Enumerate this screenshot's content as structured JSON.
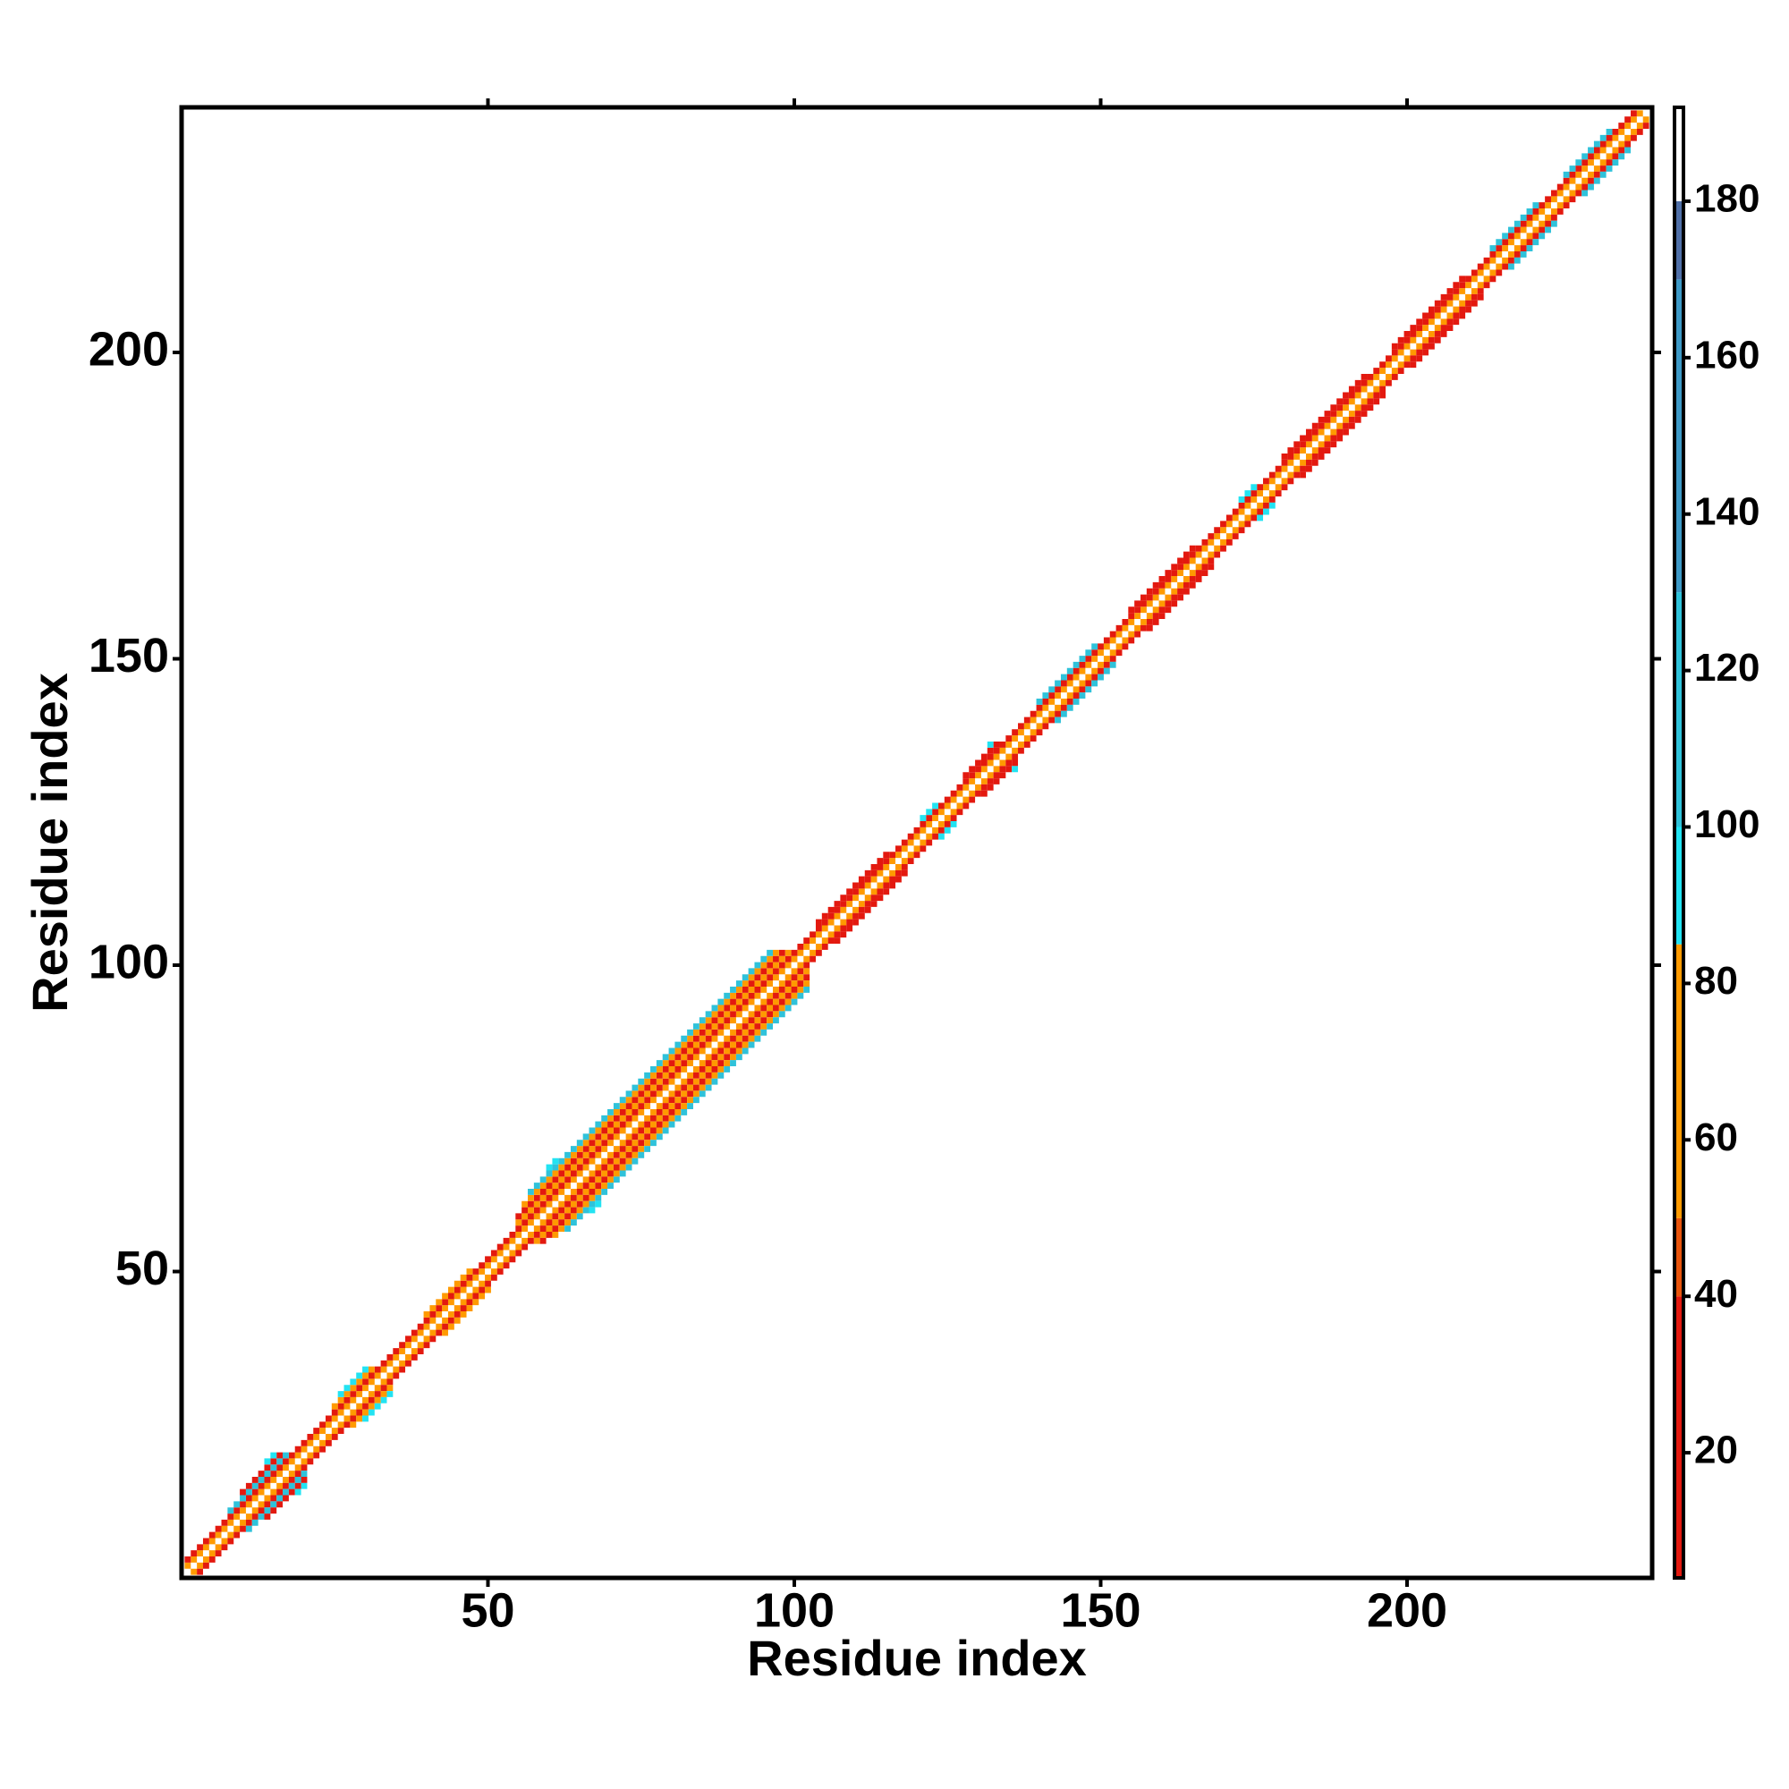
{
  "chart_data": {
    "type": "heatmap",
    "x_label": "Residue index",
    "y_label": "Residue index",
    "xlim": [
      0,
      240
    ],
    "ylim": [
      0,
      240
    ],
    "xticks": [
      50,
      100,
      150,
      200
    ],
    "yticks": [
      50,
      100,
      150,
      200
    ],
    "bands": [
      {
        "start": 1,
        "end": 239,
        "offset": 0,
        "value": 185
      },
      {
        "start": 1,
        "end": 239,
        "offset": 1,
        "value": 60
      },
      {
        "start": 1,
        "end": 239,
        "offset": 2,
        "value": 30
      },
      {
        "start": 8,
        "end": 20,
        "offset": 3,
        "value": 110
      },
      {
        "start": 10,
        "end": 20,
        "offset": 4,
        "value": 25
      },
      {
        "start": 14,
        "end": 20,
        "offset": 5,
        "value": 95
      },
      {
        "start": 25,
        "end": 34,
        "offset": 3,
        "value": 60
      },
      {
        "start": 26,
        "end": 34,
        "offset": 4,
        "value": 100
      },
      {
        "start": 40,
        "end": 50,
        "offset": 3,
        "value": 65
      },
      {
        "start": 55,
        "end": 102,
        "offset": 3,
        "value": 65
      },
      {
        "start": 55,
        "end": 102,
        "offset": 4,
        "value": 25
      },
      {
        "start": 56,
        "end": 102,
        "offset": 5,
        "value": 70
      },
      {
        "start": 57,
        "end": 102,
        "offset": 6,
        "value": 110
      },
      {
        "start": 60,
        "end": 68,
        "offset": 7,
        "value": 95
      },
      {
        "start": 104,
        "end": 118,
        "offset": 3,
        "value": 30
      },
      {
        "start": 121,
        "end": 126,
        "offset": 3,
        "value": 100
      },
      {
        "start": 128,
        "end": 136,
        "offset": 3,
        "value": 30
      },
      {
        "start": 132,
        "end": 136,
        "offset": 4,
        "value": 100
      },
      {
        "start": 140,
        "end": 152,
        "offset": 3,
        "value": 110
      },
      {
        "start": 155,
        "end": 168,
        "offset": 3,
        "value": 25
      },
      {
        "start": 173,
        "end": 178,
        "offset": 3,
        "value": 100
      },
      {
        "start": 180,
        "end": 196,
        "offset": 3,
        "value": 30
      },
      {
        "start": 198,
        "end": 212,
        "offset": 3,
        "value": 25
      },
      {
        "start": 214,
        "end": 224,
        "offset": 3,
        "value": 105
      },
      {
        "start": 226,
        "end": 236,
        "offset": 3,
        "value": 110
      }
    ],
    "colorbar": {
      "lim": [
        4,
        192
      ],
      "ticks": [
        20,
        40,
        60,
        80,
        100,
        120,
        140,
        160,
        180
      ],
      "segments": [
        {
          "from": 4,
          "to": 40,
          "color": "#e3190f"
        },
        {
          "from": 40,
          "to": 50,
          "color": "#e8540c"
        },
        {
          "from": 50,
          "to": 85,
          "color": "#ff9a00"
        },
        {
          "from": 85,
          "to": 100,
          "color": "#22e3f2"
        },
        {
          "from": 100,
          "to": 130,
          "color": "#2fc2da"
        },
        {
          "from": 130,
          "to": 170,
          "color": "#3d99c6"
        },
        {
          "from": 170,
          "to": 180,
          "color": "#5070a8"
        },
        {
          "from": 180,
          "to": 192,
          "color": "#ffffff"
        }
      ]
    }
  }
}
